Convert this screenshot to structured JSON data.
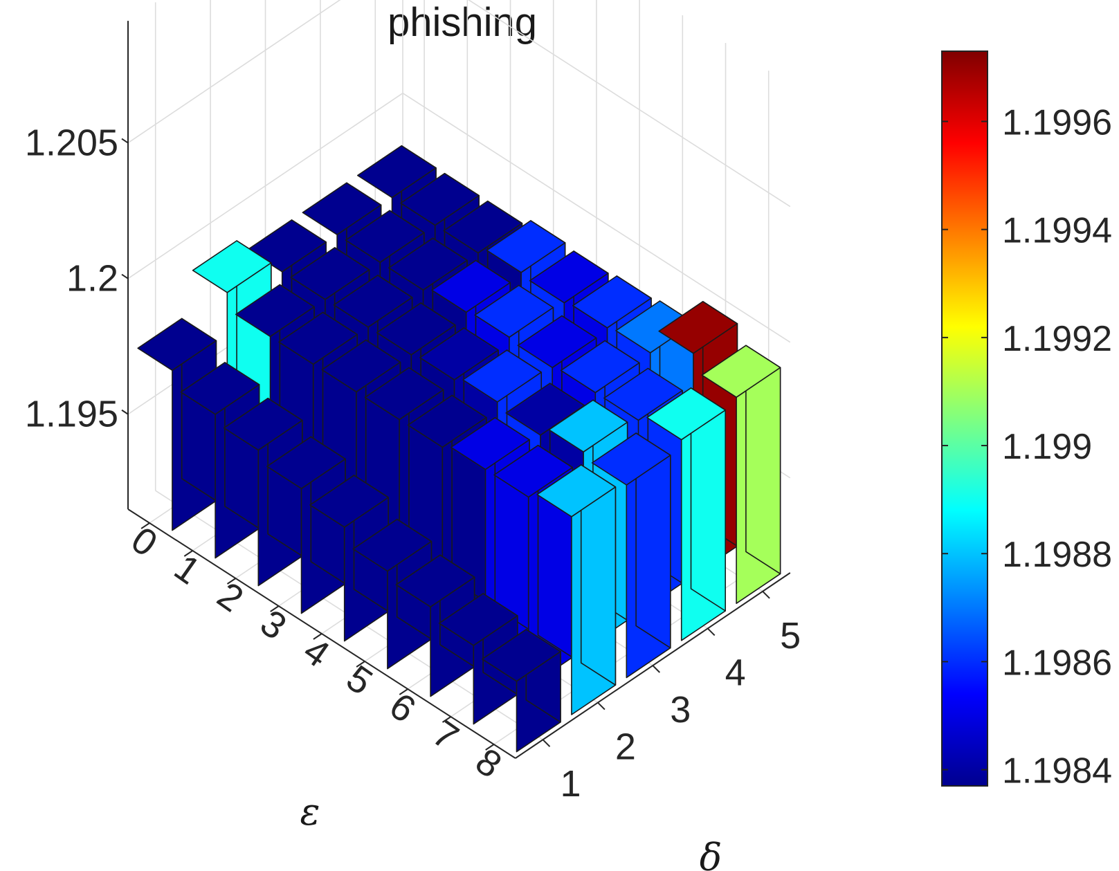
{
  "chart_data": {
    "type": "bar3",
    "title": "phishing",
    "xlabel": "δ",
    "ylabel": "ε",
    "zlabel": "",
    "x_ticks": [
      "1",
      "2",
      "3",
      "4",
      "5"
    ],
    "y_ticks": [
      "0",
      "1",
      "2",
      "3",
      "4",
      "5",
      "6",
      "7",
      "8"
    ],
    "z_ticks": [
      "1.195",
      "1.2",
      "1.205"
    ],
    "z_tick_values": [
      1.195,
      1.2,
      1.205
    ],
    "zlim": [
      1.1915,
      1.2095
    ],
    "grid": true,
    "colormap": "jet",
    "colorbar": {
      "ticks": [
        "1.1984",
        "1.1986",
        "1.1988",
        "1.199",
        "1.1992",
        "1.1994",
        "1.1996"
      ],
      "tick_values": [
        1.1984,
        1.1986,
        1.1988,
        1.199,
        1.1992,
        1.1994,
        1.1996
      ],
      "clim": [
        1.19837,
        1.19973
      ],
      "placement": "right"
    },
    "values": [
      [
        1.1974,
        1.1989,
        1.1983,
        1.1983,
        1.1983
      ],
      [
        1.1968,
        1.1983,
        1.1983,
        1.1983,
        1.1983
      ],
      [
        1.1965,
        1.1983,
        1.1983,
        1.1983,
        1.1983
      ],
      [
        1.1961,
        1.1983,
        1.1983,
        1.1985,
        1.1986
      ],
      [
        1.1957,
        1.1983,
        1.1984,
        1.1986,
        1.1985
      ],
      [
        1.1951,
        1.1983,
        1.1986,
        1.1985,
        1.1986
      ],
      [
        1.1948,
        1.1985,
        1.1984,
        1.1986,
        1.1987
      ],
      [
        1.1944,
        1.1985,
        1.1988,
        1.1986,
        1.1997
      ],
      [
        1.1941,
        1.1988,
        1.1986,
        1.1989,
        1.1991
      ]
    ]
  }
}
